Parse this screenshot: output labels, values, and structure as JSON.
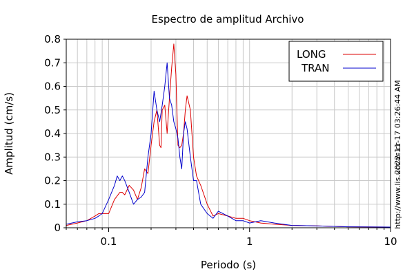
{
  "chart_data": {
    "type": "line",
    "title": "Espectro de amplitud Archivo",
    "xlabel": "Periodo (s)",
    "ylabel": "Amplitud (cm/s)",
    "x_scale": "log",
    "xlim": [
      0.05,
      10
    ],
    "ylim": [
      0,
      0.8
    ],
    "x_ticks": [
      {
        "value": 0.1,
        "label": "0.1"
      },
      {
        "value": 1,
        "label": "1"
      },
      {
        "value": 10,
        "label": "10"
      }
    ],
    "y_ticks": [
      {
        "value": 0,
        "label": "0"
      },
      {
        "value": 0.1,
        "label": "0.1"
      },
      {
        "value": 0.2,
        "label": "0.2"
      },
      {
        "value": 0.3,
        "label": "0.3"
      },
      {
        "value": 0.4,
        "label": "0.4"
      },
      {
        "value": 0.5,
        "label": "0.5"
      },
      {
        "value": 0.6,
        "label": "0.6"
      },
      {
        "value": 0.7,
        "label": "0.7"
      },
      {
        "value": 0.8,
        "label": "0.8"
      }
    ],
    "grid": true,
    "legend_position": "top-right",
    "series": [
      {
        "name": "LONG",
        "color": "#dd0000",
        "x": [
          0.05,
          0.06,
          0.07,
          0.08,
          0.085,
          0.09,
          0.1,
          0.11,
          0.12,
          0.125,
          0.13,
          0.14,
          0.15,
          0.16,
          0.17,
          0.18,
          0.19,
          0.2,
          0.21,
          0.22,
          0.23,
          0.235,
          0.24,
          0.25,
          0.26,
          0.27,
          0.28,
          0.29,
          0.3,
          0.31,
          0.32,
          0.33,
          0.34,
          0.35,
          0.36,
          0.38,
          0.4,
          0.42,
          0.45,
          0.5,
          0.55,
          0.6,
          0.7,
          0.8,
          0.9,
          1.0,
          1.2,
          1.5,
          2.0,
          3.0,
          5.0,
          10.0
        ],
        "y": [
          0.01,
          0.02,
          0.03,
          0.05,
          0.06,
          0.06,
          0.06,
          0.12,
          0.15,
          0.15,
          0.14,
          0.18,
          0.16,
          0.12,
          0.17,
          0.25,
          0.23,
          0.35,
          0.45,
          0.5,
          0.35,
          0.34,
          0.5,
          0.52,
          0.4,
          0.55,
          0.68,
          0.78,
          0.65,
          0.35,
          0.34,
          0.35,
          0.4,
          0.5,
          0.56,
          0.5,
          0.3,
          0.22,
          0.18,
          0.1,
          0.05,
          0.06,
          0.05,
          0.04,
          0.04,
          0.03,
          0.02,
          0.015,
          0.01,
          0.008,
          0.004,
          0.003
        ]
      },
      {
        "name": "TRAN",
        "color": "#0000cc",
        "x": [
          0.05,
          0.06,
          0.07,
          0.08,
          0.085,
          0.09,
          0.1,
          0.11,
          0.115,
          0.12,
          0.125,
          0.13,
          0.14,
          0.15,
          0.16,
          0.17,
          0.18,
          0.19,
          0.2,
          0.21,
          0.22,
          0.23,
          0.24,
          0.25,
          0.26,
          0.27,
          0.28,
          0.29,
          0.3,
          0.31,
          0.32,
          0.33,
          0.34,
          0.35,
          0.36,
          0.38,
          0.4,
          0.42,
          0.45,
          0.5,
          0.55,
          0.6,
          0.7,
          0.8,
          0.9,
          1.0,
          1.2,
          1.5,
          2.0,
          3.0,
          5.0,
          10.0
        ],
        "y": [
          0.015,
          0.025,
          0.03,
          0.04,
          0.05,
          0.06,
          0.12,
          0.18,
          0.22,
          0.2,
          0.22,
          0.2,
          0.15,
          0.1,
          0.12,
          0.13,
          0.15,
          0.3,
          0.4,
          0.58,
          0.5,
          0.45,
          0.52,
          0.6,
          0.7,
          0.55,
          0.52,
          0.45,
          0.42,
          0.38,
          0.3,
          0.25,
          0.4,
          0.45,
          0.42,
          0.3,
          0.2,
          0.2,
          0.1,
          0.06,
          0.04,
          0.07,
          0.05,
          0.03,
          0.03,
          0.02,
          0.03,
          0.02,
          0.01,
          0.008,
          0.004,
          0.003
        ]
      }
    ]
  },
  "side_annotations": {
    "timestamp": "2022-11-17 03:26:44 AM",
    "url": "http://www.lis.ucr.ac.cr"
  }
}
